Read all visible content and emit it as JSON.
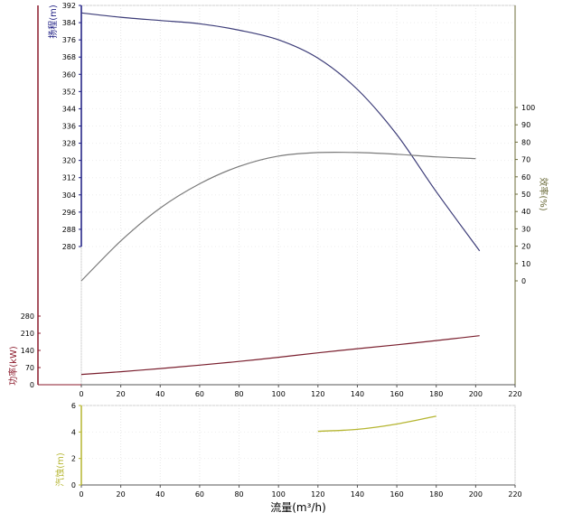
{
  "chart_data": [
    {
      "type": "line",
      "title": "",
      "xlabel": "流量(m³/h)",
      "xlim": [
        0,
        220
      ],
      "x_ticks": [
        0,
        20,
        40,
        60,
        80,
        100,
        120,
        140,
        160,
        180,
        200,
        220
      ],
      "axes": {
        "head": {
          "label": "扬程(m)",
          "ticks": [
            280,
            288,
            296,
            304,
            312,
            320,
            328,
            336,
            344,
            352,
            360,
            368,
            376,
            384,
            392
          ],
          "color": "#1a1a80"
        },
        "efficiency": {
          "label": "效率(%)",
          "ticks": [
            0,
            10,
            20,
            30,
            40,
            50,
            60,
            70,
            80,
            90,
            100
          ],
          "color": "#6b6b3a"
        },
        "power": {
          "label": "功率(kW)",
          "ticks": [
            0,
            70,
            140,
            210,
            280
          ],
          "color": "#8b1a2b"
        }
      },
      "series": [
        {
          "axis": "head",
          "color": "#3c3c78",
          "x": [
            0,
            20,
            40,
            60,
            80,
            100,
            120,
            140,
            160,
            180,
            202
          ],
          "y": [
            388.5,
            386.5,
            385,
            383.5,
            380.5,
            376,
            367.5,
            353,
            332,
            305.5,
            278
          ]
        },
        {
          "axis": "efficiency",
          "color": "#7a7a7a",
          "x": [
            0,
            20,
            40,
            60,
            80,
            100,
            120,
            140,
            160,
            180,
            200
          ],
          "y": [
            0,
            23,
            42,
            56,
            66,
            72,
            74,
            74,
            73,
            71.5,
            70.5
          ]
        },
        {
          "axis": "power",
          "color": "#7a1f2e",
          "x": [
            0,
            20,
            40,
            60,
            80,
            100,
            120,
            140,
            160,
            180,
            202
          ],
          "y": [
            42,
            53,
            66,
            80,
            95,
            112,
            130,
            147,
            163,
            180,
            200
          ]
        }
      ]
    },
    {
      "type": "line",
      "title": "",
      "xlabel": "",
      "xlim": [
        0,
        220
      ],
      "x_ticks": [
        0,
        20,
        40,
        60,
        80,
        100,
        120,
        140,
        160,
        180,
        200,
        220
      ],
      "ylabel": "汽蚀(m)",
      "ylim": [
        0,
        6
      ],
      "y_ticks": [
        0,
        2,
        4,
        6
      ],
      "series": [
        {
          "color": "#b5b530",
          "x": [
            120,
            140,
            160,
            180
          ],
          "y": [
            4.05,
            4.2,
            4.6,
            5.2
          ]
        }
      ]
    }
  ]
}
